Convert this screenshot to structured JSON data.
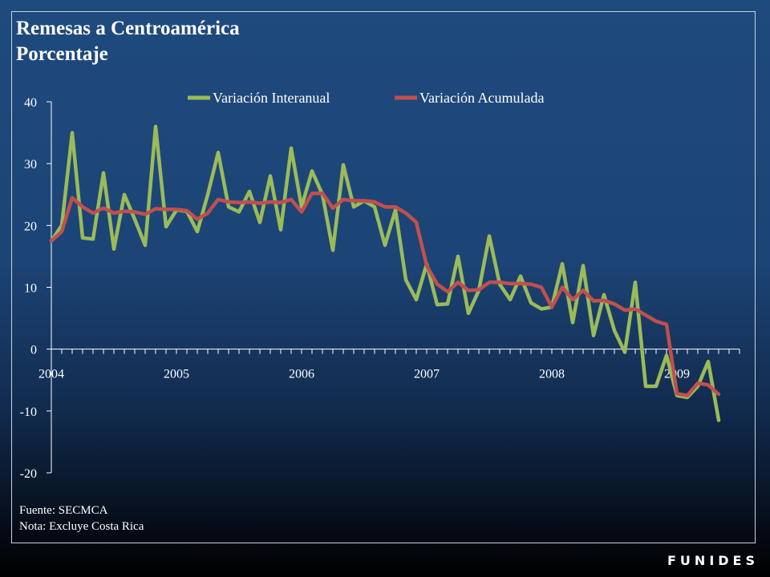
{
  "header": {
    "title": "Remesas a Centroamérica",
    "subtitle": "Porcentaje"
  },
  "footer": {
    "source": "Fuente: SECMCA",
    "note": "Nota: Excluye Costa Rica",
    "brand": "FUNIDES"
  },
  "colors": {
    "interanual": "#9bbb59",
    "acumulada": "#c0504d",
    "axis": "#ffffff"
  },
  "chart_data": {
    "type": "line",
    "title": "Remesas a Centroamérica",
    "subtitle": "Porcentaje",
    "ylim": [
      -20,
      40
    ],
    "yticks": [
      -20,
      -10,
      0,
      10,
      20,
      30,
      40
    ],
    "xlim": [
      2004.0,
      2009.5
    ],
    "xticks": [
      "2004",
      "2005",
      "2006",
      "2007",
      "2008",
      "2009"
    ],
    "legend": "top",
    "grid": false,
    "x": [
      2004.0,
      2004.0833,
      2004.1667,
      2004.25,
      2004.3333,
      2004.4167,
      2004.5,
      2004.5833,
      2004.6667,
      2004.75,
      2004.8333,
      2004.9167,
      2005.0,
      2005.0833,
      2005.1667,
      2005.25,
      2005.3333,
      2005.4167,
      2005.5,
      2005.5833,
      2005.6667,
      2005.75,
      2005.8333,
      2005.9167,
      2006.0,
      2006.0833,
      2006.1667,
      2006.25,
      2006.3333,
      2006.4167,
      2006.5,
      2006.5833,
      2006.6667,
      2006.75,
      2006.8333,
      2006.9167,
      2007.0,
      2007.0833,
      2007.1667,
      2007.25,
      2007.3333,
      2007.4167,
      2007.5,
      2007.5833,
      2007.6667,
      2007.75,
      2007.8333,
      2007.9167,
      2008.0,
      2008.0833,
      2008.1667,
      2008.25,
      2008.3333,
      2008.4167,
      2008.5,
      2008.5833,
      2008.6667,
      2008.75,
      2008.8333,
      2008.9167,
      2009.0,
      2009.0833,
      2009.1667,
      2009.25,
      2009.3333
    ],
    "series": [
      {
        "name": "Variación Interanual",
        "values": [
          17.5,
          20.0,
          35.0,
          18.0,
          17.8,
          28.5,
          16.2,
          25.0,
          21.0,
          16.8,
          36.0,
          19.8,
          22.5,
          22.3,
          19.0,
          25.0,
          31.8,
          23.0,
          22.2,
          25.5,
          20.5,
          28.0,
          19.3,
          32.5,
          23.0,
          28.8,
          25.0,
          16.0,
          29.8,
          23.0,
          24.0,
          23.0,
          16.8,
          22.5,
          11.2,
          8.0,
          13.8,
          7.2,
          7.3,
          15.0,
          5.8,
          9.5,
          18.3,
          10.5,
          8.0,
          11.8,
          7.5,
          6.5,
          6.8,
          13.8,
          4.3,
          13.5,
          2.2,
          8.8,
          3.0,
          -0.5,
          10.8,
          -6.0,
          -6.0,
          -1.0,
          -7.5,
          -7.8,
          -6.0,
          -2.0,
          -11.5
        ]
      },
      {
        "name": "Variación Acumulada",
        "values": [
          17.5,
          19.0,
          24.5,
          23.0,
          22.0,
          22.8,
          22.0,
          22.3,
          22.2,
          21.8,
          22.7,
          22.6,
          22.6,
          22.4,
          21.0,
          22.0,
          24.2,
          23.8,
          23.7,
          23.8,
          23.6,
          23.8,
          23.7,
          24.2,
          22.2,
          25.2,
          25.2,
          22.8,
          24.2,
          24.0,
          24.0,
          23.8,
          23.0,
          23.0,
          22.0,
          20.5,
          13.5,
          10.5,
          9.3,
          10.8,
          9.5,
          9.6,
          10.8,
          10.8,
          10.6,
          10.6,
          10.5,
          10.0,
          6.8,
          10.0,
          8.0,
          9.5,
          7.8,
          7.9,
          7.3,
          6.3,
          6.5,
          5.5,
          4.5,
          4.0,
          -7.2,
          -7.5,
          -5.5,
          -5.8,
          -7.3
        ]
      }
    ]
  }
}
